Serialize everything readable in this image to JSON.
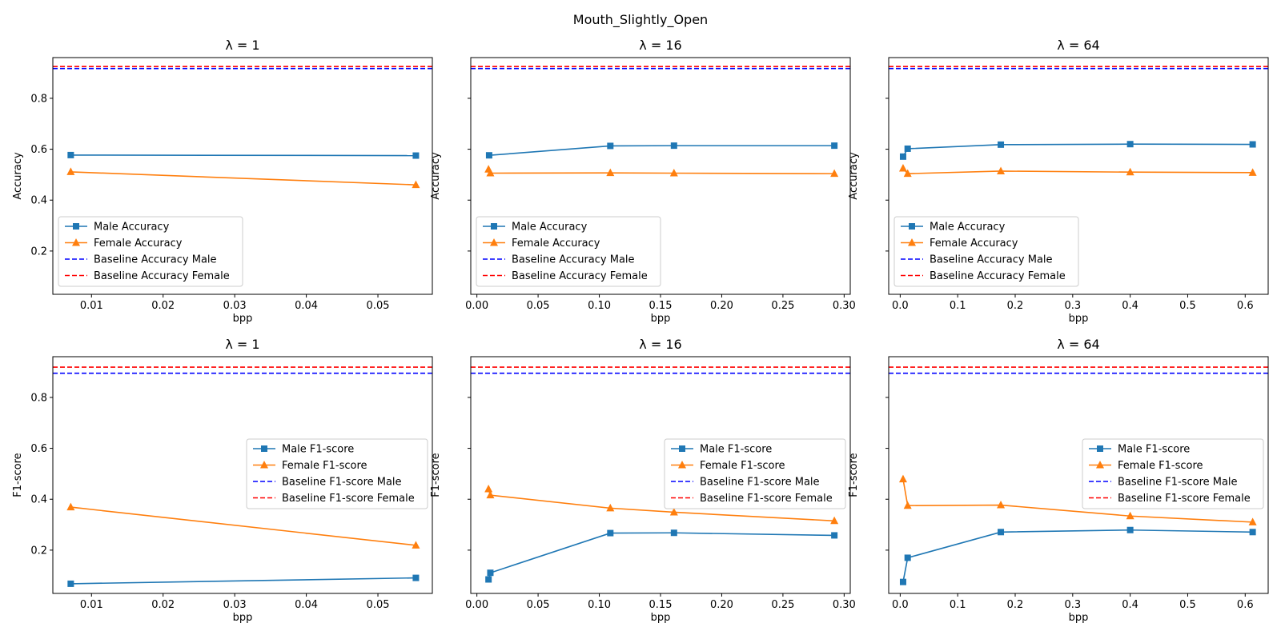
{
  "figure": {
    "title": "Mouth_Slightly_Open"
  },
  "colors": {
    "male": "#1f77b4",
    "female": "#ff7f0e",
    "baseline_male": "#0000ff",
    "baseline_female": "#ff0000"
  },
  "chart_data": [
    {
      "type": "line",
      "title": "λ = 1",
      "xlabel": "bpp",
      "ylabel": "Accuracy",
      "xlim": [
        0.0046,
        0.0576
      ],
      "ylim": [
        0.03,
        0.96
      ],
      "xticks": [
        0.01,
        0.02,
        0.03,
        0.04,
        0.05
      ],
      "xtick_labels": [
        "0.01",
        "0.02",
        "0.03",
        "0.04",
        "0.05"
      ],
      "yticks": [
        0.2,
        0.4,
        0.6,
        0.8
      ],
      "ytick_labels": [
        "0.2",
        "0.4",
        "0.6",
        "0.8"
      ],
      "series": [
        {
          "name": "Male Accuracy",
          "marker": "square",
          "x": [
            0.0071,
            0.0553
          ],
          "y": [
            0.577,
            0.575
          ]
        },
        {
          "name": "Female Accuracy",
          "marker": "triangle",
          "x": [
            0.0071,
            0.0553
          ],
          "y": [
            0.511,
            0.46
          ]
        }
      ],
      "baselines": [
        {
          "name": "Baseline Accuracy Male",
          "y": 0.917
        },
        {
          "name": "Baseline Accuracy Female",
          "y": 0.925
        }
      ],
      "legend": "lower-left"
    },
    {
      "type": "line",
      "title": "λ = 16",
      "xlabel": "bpp",
      "ylabel": "Accuracy",
      "xlim": [
        -0.005,
        0.305
      ],
      "ylim": [
        0.03,
        0.96
      ],
      "xticks": [
        0.0,
        0.05,
        0.1,
        0.15,
        0.2,
        0.25,
        0.3
      ],
      "xtick_labels": [
        "0.00",
        "0.05",
        "0.10",
        "0.15",
        "0.20",
        "0.25",
        "0.30"
      ],
      "yticks": [
        0.2,
        0.4,
        0.6,
        0.8
      ],
      "ytick_labels": [
        "",
        "",
        "",
        ""
      ],
      "series": [
        {
          "name": "Male Accuracy",
          "marker": "square",
          "x": [
            0.01,
            0.109,
            0.161,
            0.292
          ],
          "y": [
            0.576,
            0.613,
            0.614,
            0.614
          ]
        },
        {
          "name": "Female Accuracy",
          "marker": "triangle",
          "x": [
            0.0095,
            0.011,
            0.109,
            0.161,
            0.292
          ],
          "y": [
            0.521,
            0.506,
            0.507,
            0.506,
            0.504
          ]
        }
      ],
      "baselines": [
        {
          "name": "Baseline Accuracy Male",
          "y": 0.917
        },
        {
          "name": "Baseline Accuracy Female",
          "y": 0.925
        }
      ],
      "legend": "lower-left"
    },
    {
      "type": "line",
      "title": "λ = 64",
      "xlabel": "bpp",
      "ylabel": "Accuracy",
      "xlim": [
        -0.02,
        0.64
      ],
      "ylim": [
        0.03,
        0.96
      ],
      "xticks": [
        0.0,
        0.1,
        0.2,
        0.3,
        0.4,
        0.5,
        0.6
      ],
      "xtick_labels": [
        "0.0",
        "0.1",
        "0.2",
        "0.3",
        "0.4",
        "0.5",
        "0.6"
      ],
      "yticks": [
        0.2,
        0.4,
        0.6,
        0.8
      ],
      "ytick_labels": [
        "",
        "",
        "",
        ""
      ],
      "series": [
        {
          "name": "Male Accuracy",
          "marker": "square",
          "x": [
            0.005,
            0.013,
            0.175,
            0.4,
            0.613
          ],
          "y": [
            0.571,
            0.602,
            0.618,
            0.62,
            0.619
          ]
        },
        {
          "name": "Female Accuracy",
          "marker": "triangle",
          "x": [
            0.005,
            0.013,
            0.175,
            0.4,
            0.613
          ],
          "y": [
            0.525,
            0.504,
            0.514,
            0.51,
            0.508
          ]
        }
      ],
      "baselines": [
        {
          "name": "Baseline Accuracy Male",
          "y": 0.917
        },
        {
          "name": "Baseline Accuracy Female",
          "y": 0.925
        }
      ],
      "legend": "lower-left"
    },
    {
      "type": "line",
      "title": "λ = 1",
      "xlabel": "bpp",
      "ylabel": "F1-score",
      "xlim": [
        0.0046,
        0.0576
      ],
      "ylim": [
        0.03,
        0.96
      ],
      "xticks": [
        0.01,
        0.02,
        0.03,
        0.04,
        0.05
      ],
      "xtick_labels": [
        "0.01",
        "0.02",
        "0.03",
        "0.04",
        "0.05"
      ],
      "yticks": [
        0.2,
        0.4,
        0.6,
        0.8
      ],
      "ytick_labels": [
        "0.2",
        "0.4",
        "0.6",
        "0.8"
      ],
      "series": [
        {
          "name": "Male F1-score",
          "marker": "square",
          "x": [
            0.0071,
            0.0553
          ],
          "y": [
            0.068,
            0.091
          ]
        },
        {
          "name": "Female F1-score",
          "marker": "triangle",
          "x": [
            0.0071,
            0.0553
          ],
          "y": [
            0.369,
            0.219
          ]
        }
      ],
      "baselines": [
        {
          "name": "Baseline F1-score Male",
          "y": 0.895
        },
        {
          "name": "Baseline F1-score Female",
          "y": 0.919
        }
      ],
      "legend": "center-right"
    },
    {
      "type": "line",
      "title": "λ = 16",
      "xlabel": "bpp",
      "ylabel": "F1-score",
      "xlim": [
        -0.005,
        0.305
      ],
      "ylim": [
        0.03,
        0.96
      ],
      "xticks": [
        0.0,
        0.05,
        0.1,
        0.15,
        0.2,
        0.25,
        0.3
      ],
      "xtick_labels": [
        "0.00",
        "0.05",
        "0.10",
        "0.15",
        "0.20",
        "0.25",
        "0.30"
      ],
      "yticks": [
        0.2,
        0.4,
        0.6,
        0.8
      ],
      "ytick_labels": [
        "",
        "",
        "",
        ""
      ],
      "series": [
        {
          "name": "Male F1-score",
          "marker": "square",
          "x": [
            0.0095,
            0.011,
            0.109,
            0.161,
            0.292
          ],
          "y": [
            0.085,
            0.111,
            0.267,
            0.268,
            0.258
          ]
        },
        {
          "name": "Female F1-score",
          "marker": "triangle",
          "x": [
            0.0095,
            0.011,
            0.109,
            0.161,
            0.292
          ],
          "y": [
            0.44,
            0.416,
            0.365,
            0.349,
            0.315
          ]
        }
      ],
      "baselines": [
        {
          "name": "Baseline F1-score Male",
          "y": 0.895
        },
        {
          "name": "Baseline F1-score Female",
          "y": 0.919
        }
      ],
      "legend": "center-right"
    },
    {
      "type": "line",
      "title": "λ = 64",
      "xlabel": "bpp",
      "ylabel": "F1-score",
      "xlim": [
        -0.02,
        0.64
      ],
      "ylim": [
        0.03,
        0.96
      ],
      "xticks": [
        0.0,
        0.1,
        0.2,
        0.3,
        0.4,
        0.5,
        0.6
      ],
      "xtick_labels": [
        "0.0",
        "0.1",
        "0.2",
        "0.3",
        "0.4",
        "0.5",
        "0.6"
      ],
      "yticks": [
        0.2,
        0.4,
        0.6,
        0.8
      ],
      "ytick_labels": [
        "",
        "",
        "",
        ""
      ],
      "series": [
        {
          "name": "Male F1-score",
          "marker": "square",
          "x": [
            0.005,
            0.013,
            0.175,
            0.4,
            0.613
          ],
          "y": [
            0.075,
            0.17,
            0.271,
            0.279,
            0.271
          ]
        },
        {
          "name": "Female F1-score",
          "marker": "triangle",
          "x": [
            0.005,
            0.013,
            0.175,
            0.4,
            0.613
          ],
          "y": [
            0.479,
            0.375,
            0.377,
            0.334,
            0.31
          ]
        }
      ],
      "baselines": [
        {
          "name": "Baseline F1-score Male",
          "y": 0.895
        },
        {
          "name": "Baseline F1-score Female",
          "y": 0.919
        }
      ],
      "legend": "center-right"
    }
  ]
}
